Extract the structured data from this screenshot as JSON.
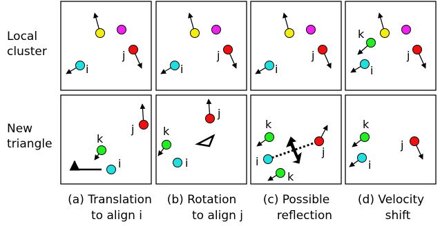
{
  "row_labels": {
    "top": [
      "Local",
      "cluster"
    ],
    "bottom": [
      "New",
      "triangle"
    ]
  },
  "captions": [
    {
      "line1": "(a) Translation",
      "line2": "to align i"
    },
    {
      "line1": "(b) Rotation",
      "line2": "to align j"
    },
    {
      "line1": "(c) Possible",
      "line2": "reflection"
    },
    {
      "line1": "(d) Velocity",
      "line2": "shift"
    }
  ],
  "particle_labels": {
    "i": "i",
    "j": "j",
    "k": "k"
  },
  "colors": {
    "i": "#22dede",
    "j": "#ee1111",
    "k": "#22ee22",
    "yellow": "#f2ee11",
    "magenta": "#ee22ee",
    "frame": "#000000"
  }
}
